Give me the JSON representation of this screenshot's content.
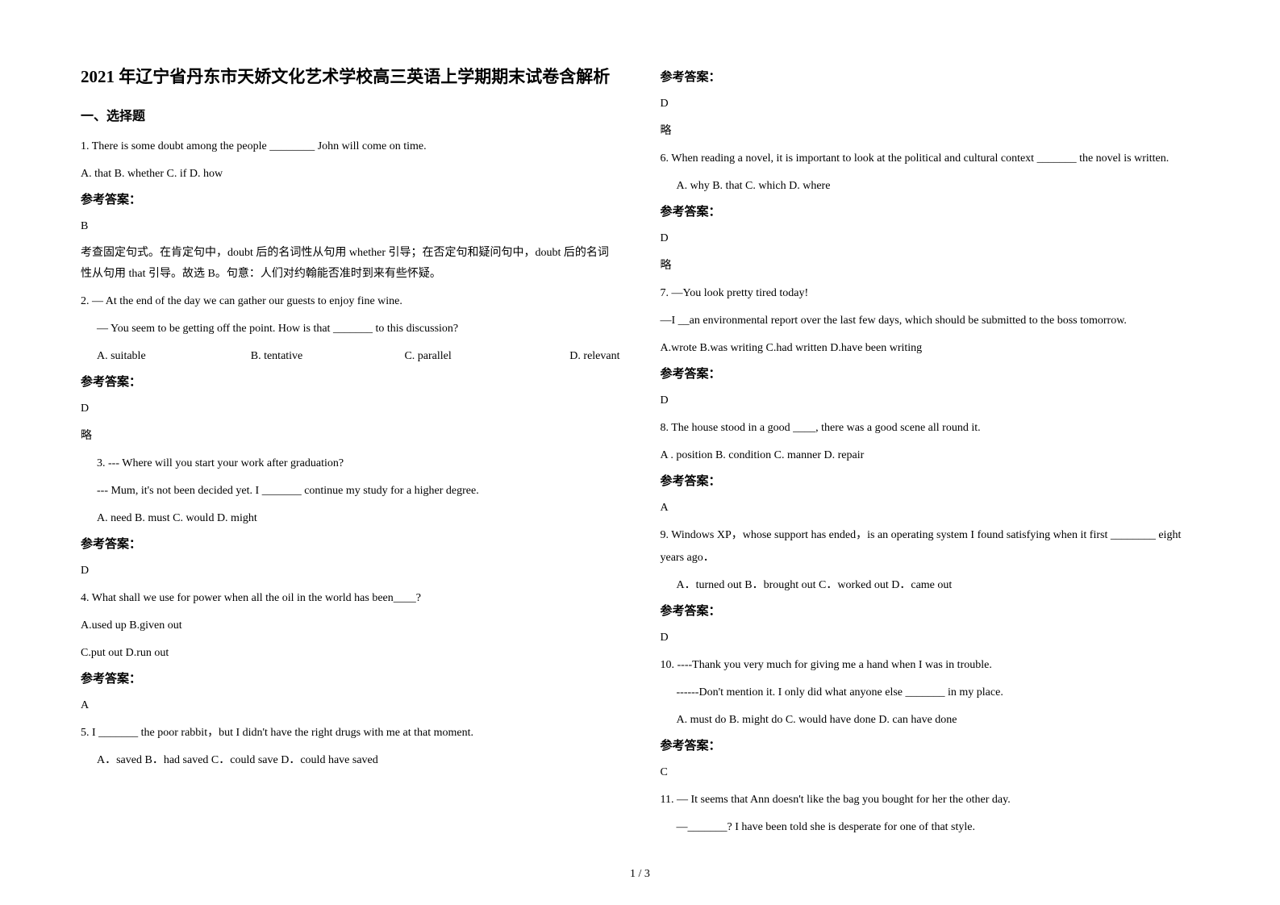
{
  "title": "2021 年辽宁省丹东市天娇文化艺术学校高三英语上学期期末试卷含解析",
  "section_header": "一、选择题",
  "answer_label": "参考答案：",
  "abbr_skip": "略",
  "q1": {
    "text": "1. There is some doubt among the people ________ John will come on time.",
    "options": "A. that   B. whether   C. if   D. how",
    "answer": "B",
    "explain": "考查固定句式。在肯定句中，doubt 后的名词性从句用 whether 引导；在否定句和疑问句中，doubt 后的名词性从句用 that 引导。故选 B。句意：人们对约翰能否准时到来有些怀疑。"
  },
  "q2": {
    "line1": "2. — At the end of the day we can gather our guests to enjoy fine wine.",
    "line2": "— You seem to be getting off the point. How is that _______ to this discussion?",
    "optA": "A. suitable",
    "optB": "B. tentative",
    "optC": "C. parallel",
    "optD": "D. relevant",
    "answer": "D"
  },
  "q3": {
    "line1": "3. --- Where will you start your work after graduation?",
    "line2": "--- Mum, it's not been decided yet. I _______ continue my study for a higher degree.",
    "opts": "A. need      B. must      C. would      D. might",
    "answer": "D"
  },
  "q4": {
    "text": "4. What shall we use for power when all the oil in the world has been____?",
    "line1": "A.used up        B.given out",
    "line2": "C.put out        D.run out",
    "answer": "A"
  },
  "q5": {
    "text": "5. I _______ the poor rabbit，but I didn't have the right drugs with me at that moment.",
    "opts": "A．saved          B．had saved       C．could save       D．could have saved",
    "answer": "D"
  },
  "q6": {
    "text": "6. When reading a novel, it is important to look at the political and cultural context _______ the novel is written.",
    "opts": "A. why          B. that          C. which          D. where",
    "answer": "D"
  },
  "q7": {
    "line1": "7. —You look pretty tired today!",
    "line2": "—I __an environmental report over the last few days, which should be submitted to the boss tomorrow.",
    "opts": "A.wrote  B.was writing  C.had written   D.have been writing",
    "answer": "D"
  },
  "q8": {
    "text": "8. The house stood in a good ____, there was a good scene all round it.",
    "opts": "A . position   B. condition   C. manner   D. repair",
    "answer": "A"
  },
  "q9": {
    "line1": "9. Windows XP，whose support has ended，is an operating system I found satisfying when it first ________ eight years ago．",
    "opts": "A．turned out  B．brought out  C．worked out  D．came out",
    "answer": "D"
  },
  "q10": {
    "line1": "10. ----Thank you very much for giving me a hand when I was in trouble.",
    "line2": "------Don't mention it. I only did what anyone else _______ in my place.",
    "opts": "A. must do      B. might do           C. would have done D. can have done",
    "answer": "C"
  },
  "q11": {
    "line1": "11. — It seems that Ann doesn't like the bag you bought for her the other day.",
    "line2": "—_______? I have been told she is desperate for one of that style."
  },
  "footer": "1 / 3"
}
